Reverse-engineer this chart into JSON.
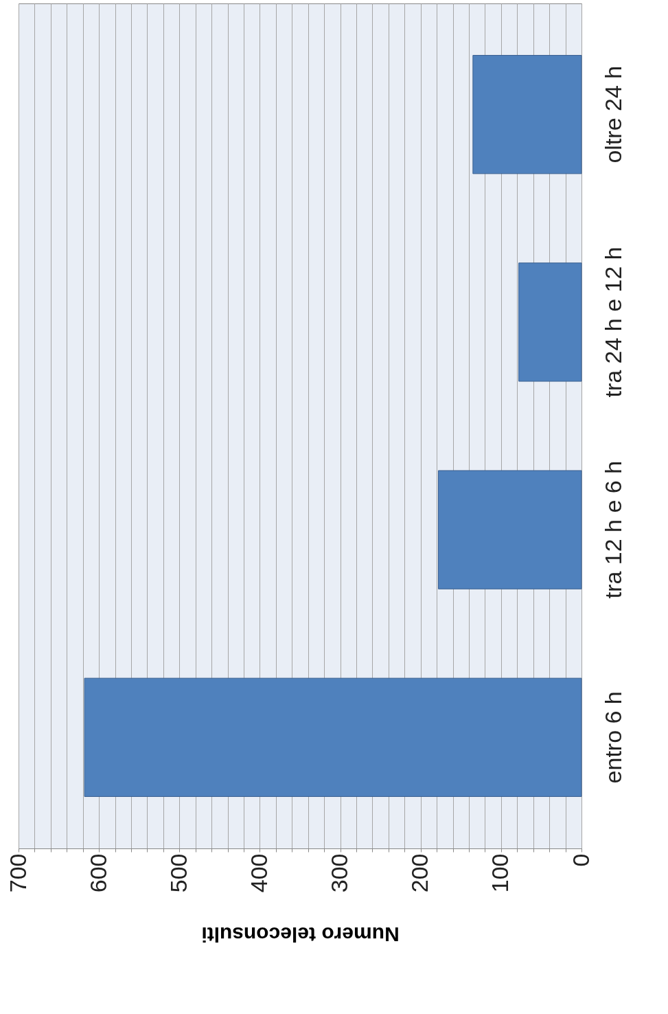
{
  "chart_data": {
    "type": "bar",
    "orientation": "horizontal",
    "categories": [
      "oltre 24 h",
      "tra 24 h e 12 h",
      "tra 12 h e 6 h",
      "entro 6 h"
    ],
    "values": [
      135,
      78,
      178,
      618
    ],
    "color": "#4f81bd",
    "xlabel": "Numero teleconsulti",
    "xlim": [
      700,
      0
    ],
    "xticks": [
      0,
      {
        "value": 20,
        "label": null
      },
      {
        "value": 40,
        "label": null
      },
      {
        "value": 60,
        "label": null
      },
      {
        "value": 80,
        "label": null
      },
      100,
      {
        "value": 120,
        "label": null
      },
      {
        "value": 140,
        "label": null
      },
      {
        "value": 160,
        "label": null
      },
      {
        "value": 180,
        "label": null
      },
      200,
      {
        "value": 220,
        "label": null
      },
      {
        "value": 240,
        "label": null
      },
      {
        "value": 260,
        "label": null
      },
      {
        "value": 280,
        "label": null
      },
      300,
      {
        "value": 320,
        "label": null
      },
      {
        "value": 340,
        "label": null
      },
      {
        "value": 360,
        "label": null
      },
      {
        "value": 380,
        "label": null
      },
      400,
      {
        "value": 420,
        "label": null
      },
      {
        "value": 440,
        "label": null
      },
      {
        "value": 460,
        "label": null
      },
      {
        "value": 480,
        "label": null
      },
      500,
      {
        "value": 520,
        "label": null
      },
      {
        "value": 540,
        "label": null
      },
      {
        "value": 560,
        "label": null
      },
      {
        "value": 580,
        "label": null
      },
      600,
      {
        "value": 620,
        "label": null
      },
      {
        "value": 640,
        "label": null
      },
      {
        "value": 660,
        "label": null
      },
      {
        "value": 680,
        "label": null
      },
      700
    ],
    "grid": "x"
  }
}
